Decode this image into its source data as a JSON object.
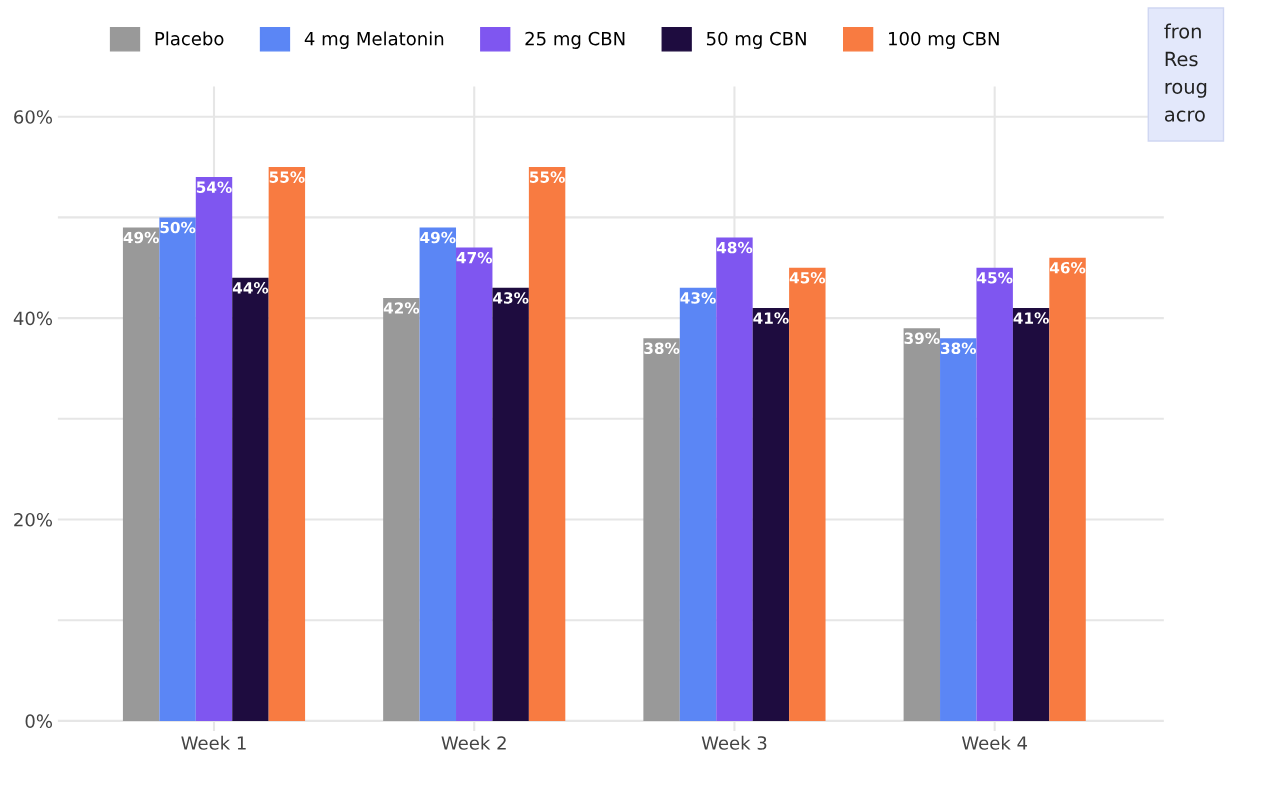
{
  "chart_data": {
    "type": "bar",
    "categories": [
      "Week 1",
      "Week 2",
      "Week 3",
      "Week 4"
    ],
    "series": [
      {
        "name": "Placebo",
        "color": "#999999",
        "values": [
          49,
          42,
          38,
          39
        ],
        "value_labels": [
          "49%",
          "42%",
          "38%",
          "39%"
        ]
      },
      {
        "name": "4 mg Melatonin",
        "color": "#5b86f5",
        "values": [
          50,
          49,
          43,
          38
        ],
        "value_labels": [
          "50%",
          "49%",
          "43%",
          "38%"
        ]
      },
      {
        "name": "25 mg CBN",
        "color": "#7f56f0",
        "values": [
          54,
          47,
          48,
          45
        ],
        "value_labels": [
          "54%",
          "47%",
          "48%",
          "45%"
        ]
      },
      {
        "name": "50 mg CBN",
        "color": "#1e0c3f",
        "values": [
          44,
          43,
          41,
          41
        ],
        "value_labels": [
          "44%",
          "43%",
          "41%",
          "41%"
        ]
      },
      {
        "name": "100 mg CBN",
        "color": "#f87b41",
        "values": [
          55,
          55,
          45,
          46
        ],
        "value_labels": [
          "55%",
          "55%",
          "45%",
          "46%"
        ]
      }
    ],
    "ylim": [
      -1,
      63
    ],
    "yticks": [
      {
        "value": 0,
        "label": "0%"
      },
      {
        "value": 10,
        "label": null
      },
      {
        "value": 20,
        "label": "20%"
      },
      {
        "value": 30,
        "label": null
      },
      {
        "value": 40,
        "label": "40%"
      },
      {
        "value": 50,
        "label": null
      },
      {
        "value": 60,
        "label": "60%"
      }
    ],
    "grid": true,
    "legend": "top",
    "annotations": [
      "fron\nRes\nroug\nacro"
    ]
  }
}
